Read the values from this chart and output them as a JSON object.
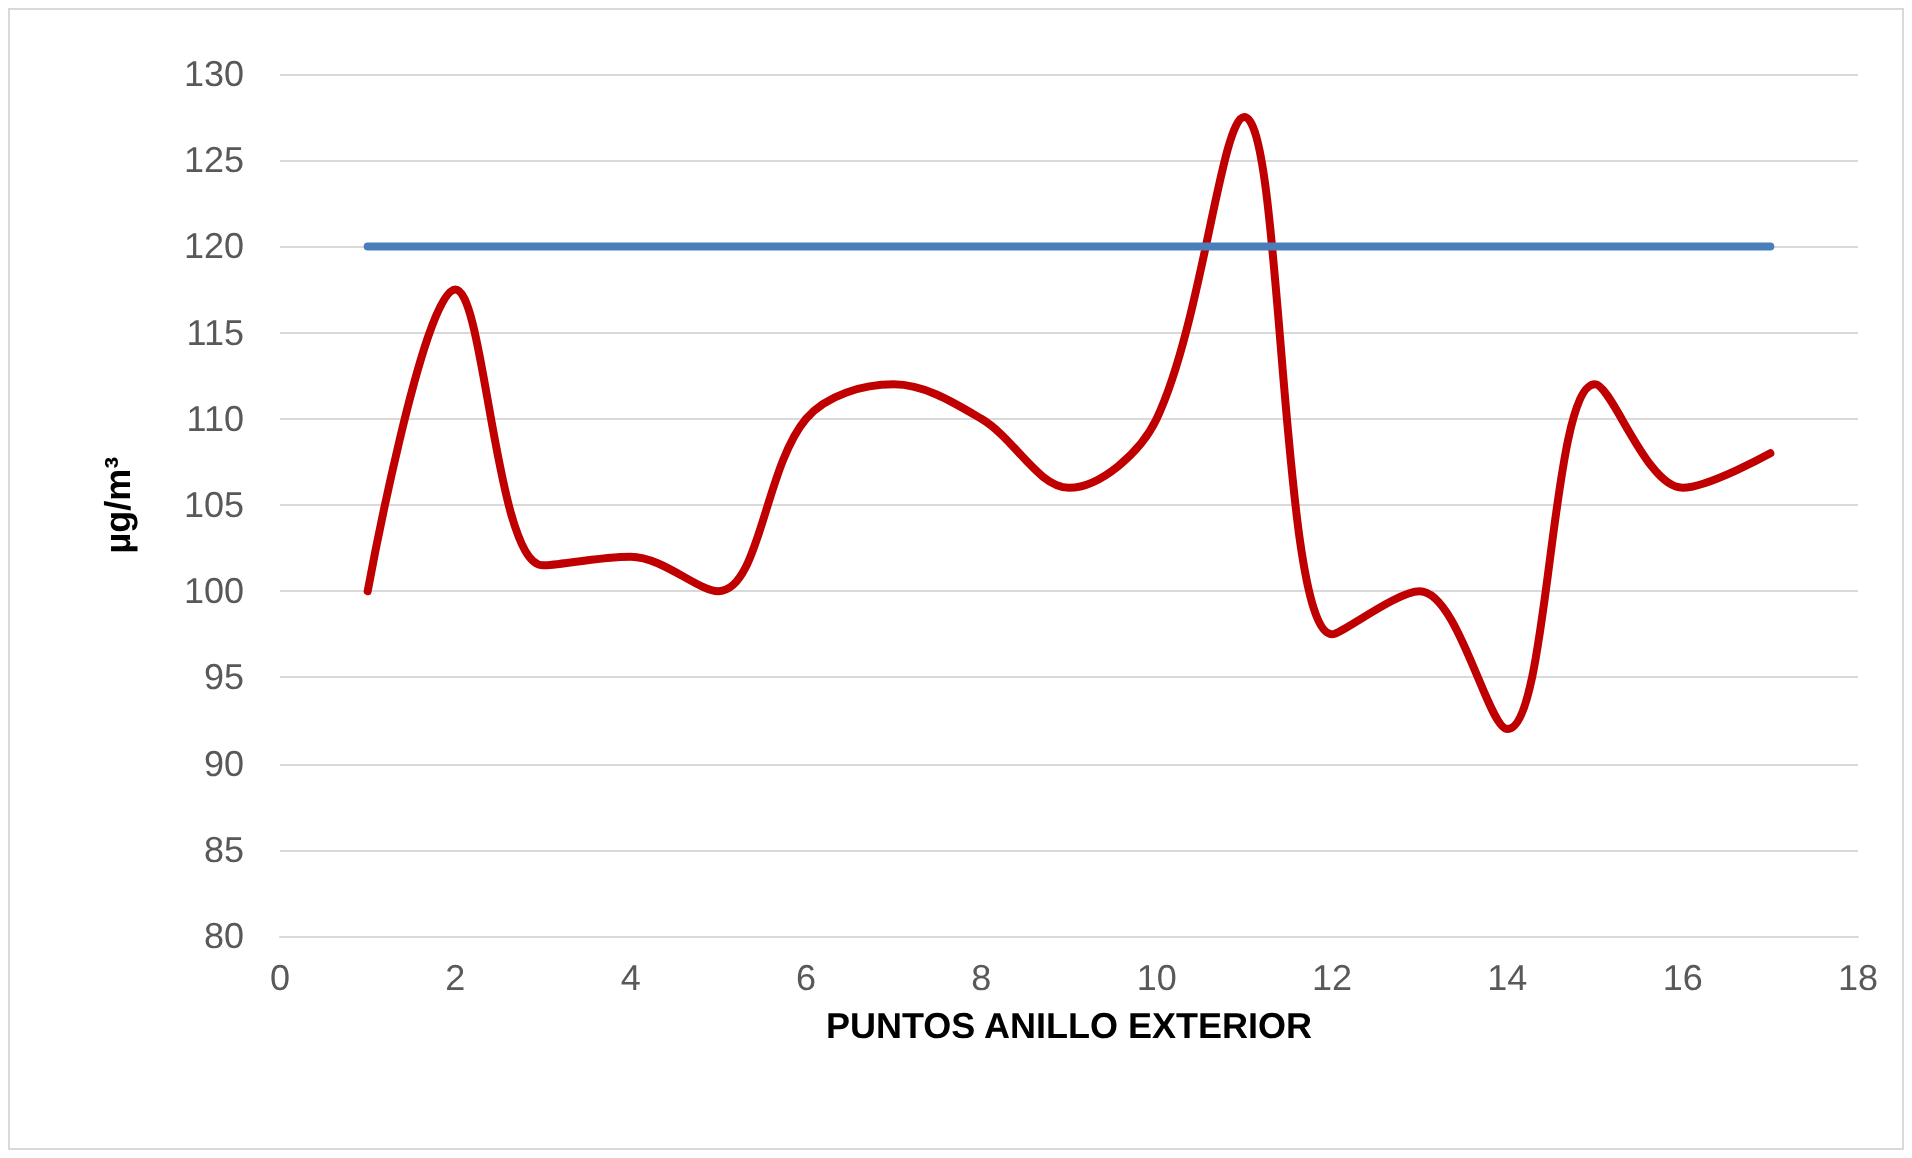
{
  "chart_data": {
    "type": "line",
    "xlabel": "PUNTOS ANILLO EXTERIOR",
    "ylabel": "µg/m³",
    "series": [
      {
        "color": "#c00000",
        "x": [
          1,
          2,
          3,
          4,
          5,
          6,
          7,
          8,
          9,
          10,
          11,
          12,
          13,
          14,
          15,
          16,
          17
        ],
        "values": [
          100,
          117.5,
          101.5,
          102,
          100,
          110,
          112,
          110,
          106,
          110,
          127.5,
          97.5,
          100,
          92,
          112,
          106,
          108
        ]
      },
      {
        "color": "#4a7ebb",
        "x": [
          1,
          17
        ],
        "values": [
          120,
          120
        ]
      }
    ],
    "xlim": [
      0,
      18
    ],
    "xticks": [
      0,
      2,
      4,
      6,
      8,
      10,
      12,
      14,
      16,
      18
    ],
    "ylim": [
      80,
      130
    ],
    "yticks": [
      80,
      85,
      90,
      95,
      100,
      105,
      110,
      115,
      120,
      125,
      130
    ],
    "grid": "y",
    "marker": "none",
    "line_style": "solid"
  }
}
